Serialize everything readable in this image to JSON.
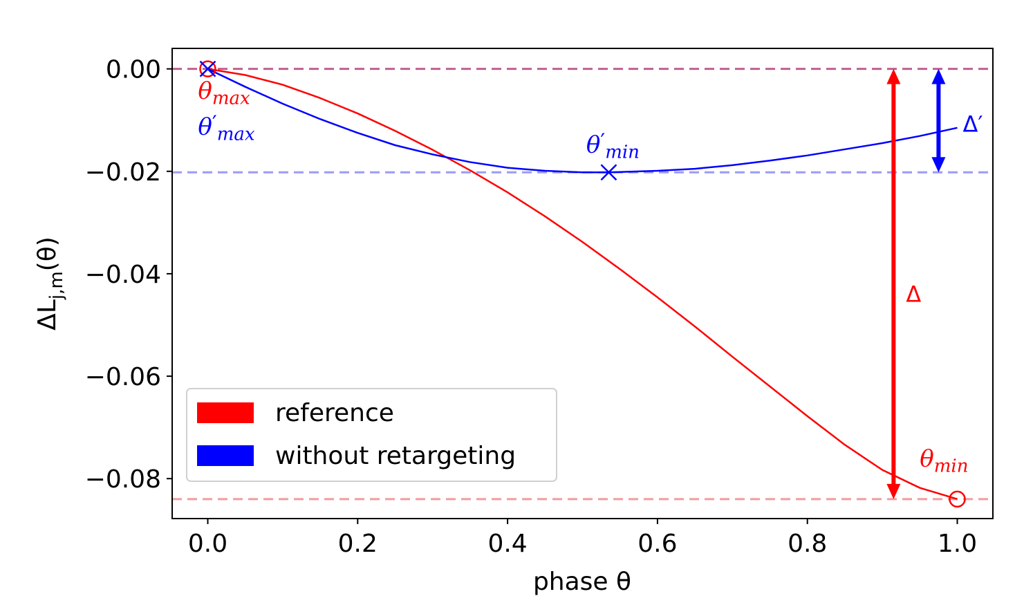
{
  "chart_data": {
    "type": "line",
    "xlabel": "phase θ",
    "ylabel": "ΔL_{j,m}(θ)",
    "xlim": [
      -0.0475,
      1.0475
    ],
    "ylim": [
      -0.0878,
      0.004
    ],
    "xticks": [
      {
        "value": 0.0,
        "label": "0.0"
      },
      {
        "value": 0.2,
        "label": "0.2"
      },
      {
        "value": 0.4,
        "label": "0.4"
      },
      {
        "value": 0.6,
        "label": "0.6"
      },
      {
        "value": 0.8,
        "label": "0.8"
      },
      {
        "value": 1.0,
        "label": "1.0"
      }
    ],
    "yticks": [
      {
        "value": 0.0,
        "label": "0.00"
      },
      {
        "value": -0.02,
        "label": "−0.02"
      },
      {
        "value": -0.04,
        "label": "−0.04"
      },
      {
        "value": -0.06,
        "label": "−0.06"
      },
      {
        "value": -0.08,
        "label": "−0.08"
      }
    ],
    "grid": false,
    "legend_position": "lower-left",
    "series": [
      {
        "name": "reference",
        "color": "#ff0000",
        "x": [
          0.0,
          0.05,
          0.1,
          0.15,
          0.2,
          0.25,
          0.3,
          0.35,
          0.4,
          0.45,
          0.5,
          0.55,
          0.6,
          0.65,
          0.7,
          0.75,
          0.8,
          0.85,
          0.9,
          0.95,
          1.0
        ],
        "y": [
          0.0,
          -0.0012,
          -0.0031,
          -0.0057,
          -0.0087,
          -0.0121,
          -0.0158,
          -0.0198,
          -0.0241,
          -0.0288,
          -0.0338,
          -0.0391,
          -0.0446,
          -0.0503,
          -0.0562,
          -0.062,
          -0.0678,
          -0.0734,
          -0.0783,
          -0.0818,
          -0.084
        ]
      },
      {
        "name": "without retargeting",
        "color": "#0000ff",
        "x": [
          0.0,
          0.05,
          0.1,
          0.15,
          0.2,
          0.25,
          0.3,
          0.35,
          0.4,
          0.45,
          0.5,
          0.535,
          0.6,
          0.65,
          0.7,
          0.75,
          0.8,
          0.85,
          0.9,
          0.95,
          1.0
        ],
        "y": [
          0.0,
          -0.0035,
          -0.0068,
          -0.0098,
          -0.0125,
          -0.0149,
          -0.0167,
          -0.0182,
          -0.0193,
          -0.0199,
          -0.0202,
          -0.0202,
          -0.0199,
          -0.0195,
          -0.0188,
          -0.0179,
          -0.0169,
          -0.0157,
          -0.0145,
          -0.0131,
          -0.0115
        ]
      }
    ],
    "reference_lines": [
      {
        "name": "max-line",
        "y": 0.0,
        "color": "#c06090"
      },
      {
        "name": "min-prime-line",
        "y": -0.0202,
        "color": "#9b9bf5"
      },
      {
        "name": "min-line",
        "y": -0.084,
        "color": "#f59b9b"
      }
    ],
    "markers": [
      {
        "name": "theta-max-marker",
        "x": 0.0,
        "y": 0.0,
        "shape": "circle",
        "color": "#ff0000"
      },
      {
        "name": "theta-max-prime-marker",
        "x": 0.0,
        "y": 0.0,
        "shape": "x",
        "color": "#0000ff"
      },
      {
        "name": "theta-min-prime-marker",
        "x": 0.535,
        "y": -0.0202,
        "shape": "x",
        "color": "#0000ff"
      },
      {
        "name": "theta-min-marker",
        "x": 1.0,
        "y": -0.084,
        "shape": "circle",
        "color": "#ff0000"
      }
    ],
    "arrows": [
      {
        "name": "delta-arrow",
        "x": 0.915,
        "y_from": 0.0,
        "y_to": -0.084,
        "color": "#ff0000",
        "label": "Δ"
      },
      {
        "name": "delta-prime-arrow",
        "x": 0.975,
        "y_from": 0.0,
        "y_to": -0.0202,
        "color": "#0000ff",
        "label": "Δ′"
      }
    ],
    "annotations": [
      {
        "name": "theta-max-label",
        "base": "θ",
        "sub": "max",
        "prime": false,
        "color": "#ff0000",
        "x": -0.013,
        "y": -0.0058
      },
      {
        "name": "theta-max-prime-label",
        "base": "θ",
        "sub": "max",
        "prime": true,
        "color": "#0000ff",
        "x": -0.013,
        "y": -0.0128
      },
      {
        "name": "theta-min-prime-label",
        "base": "θ",
        "sub": "min",
        "prime": true,
        "color": "#0000ff",
        "x": 0.505,
        "y": -0.0163
      },
      {
        "name": "theta-min-label",
        "base": "θ",
        "sub": "min",
        "prime": false,
        "color": "#ff0000",
        "x": 0.95,
        "y": -0.0776
      }
    ]
  }
}
